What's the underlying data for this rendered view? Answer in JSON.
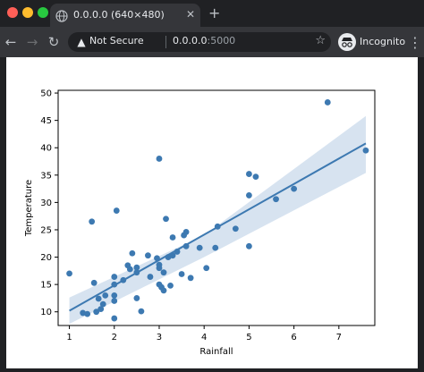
{
  "window": {
    "controls": [
      "close",
      "minimize",
      "maximize"
    ]
  },
  "tab": {
    "title": "0.0.0.0 (640×480)",
    "favicon": "globe-icon"
  },
  "address_bar": {
    "security_label": "Not Secure",
    "host": "0.0.0.0",
    "port": ":5000"
  },
  "profile": {
    "label": "Incognito"
  },
  "colors": {
    "chrome_dark": "#202124",
    "chrome_mid": "#35363a",
    "series": "#3d79b1",
    "band": "#c6d7ea"
  },
  "chart_data": {
    "type": "scatter",
    "xlabel": "Rainfall",
    "ylabel": "Temperature",
    "xlim": [
      0.75,
      7.8
    ],
    "ylim": [
      7.5,
      50.5
    ],
    "xticks": [
      1,
      2,
      3,
      4,
      5,
      6,
      7
    ],
    "yticks": [
      10,
      15,
      20,
      25,
      30,
      35,
      40,
      45,
      50
    ],
    "grid": false,
    "points": [
      [
        1.0,
        17.0
      ],
      [
        1.3,
        9.8
      ],
      [
        1.4,
        9.6
      ],
      [
        1.5,
        26.5
      ],
      [
        1.55,
        15.3
      ],
      [
        1.6,
        10.0
      ],
      [
        1.65,
        12.4
      ],
      [
        1.7,
        10.5
      ],
      [
        1.75,
        11.4
      ],
      [
        1.8,
        13.0
      ],
      [
        2.0,
        8.8
      ],
      [
        2.0,
        12.0
      ],
      [
        2.0,
        13.0
      ],
      [
        2.0,
        15.0
      ],
      [
        2.0,
        16.4
      ],
      [
        2.05,
        28.5
      ],
      [
        2.2,
        15.8
      ],
      [
        2.3,
        18.5
      ],
      [
        2.35,
        17.8
      ],
      [
        2.4,
        20.7
      ],
      [
        2.5,
        12.5
      ],
      [
        2.5,
        17.2
      ],
      [
        2.5,
        18.1
      ],
      [
        2.6,
        10.1
      ],
      [
        2.75,
        20.3
      ],
      [
        2.8,
        16.4
      ],
      [
        2.95,
        19.8
      ],
      [
        3.0,
        18.0
      ],
      [
        3.0,
        18.6
      ],
      [
        3.0,
        15.0
      ],
      [
        3.0,
        38.0
      ],
      [
        3.05,
        14.5
      ],
      [
        3.1,
        17.2
      ],
      [
        3.1,
        13.9
      ],
      [
        3.2,
        20.0
      ],
      [
        3.15,
        27.0
      ],
      [
        3.25,
        14.8
      ],
      [
        3.3,
        20.3
      ],
      [
        3.3,
        23.6
      ],
      [
        3.4,
        21.0
      ],
      [
        3.5,
        16.9
      ],
      [
        3.55,
        24.0
      ],
      [
        3.6,
        22.0
      ],
      [
        3.6,
        24.6
      ],
      [
        3.7,
        16.2
      ],
      [
        3.9,
        21.7
      ],
      [
        4.05,
        18.0
      ],
      [
        4.25,
        21.7
      ],
      [
        4.3,
        25.6
      ],
      [
        4.7,
        25.2
      ],
      [
        5.0,
        22.0
      ],
      [
        5.0,
        31.3
      ],
      [
        5.0,
        35.2
      ],
      [
        5.15,
        34.7
      ],
      [
        5.6,
        30.6
      ],
      [
        6.0,
        32.5
      ],
      [
        6.75,
        48.3
      ],
      [
        7.6,
        39.5
      ]
    ],
    "regression": {
      "x_start": 1.0,
      "x_end": 7.6,
      "y_start": 10.2,
      "y_end": 40.8
    },
    "confidence_band": {
      "upper": [
        [
          1.0,
          12.6
        ],
        [
          4.0,
          24.0
        ],
        [
          7.6,
          45.8
        ]
      ],
      "lower": [
        [
          1.0,
          7.8
        ],
        [
          4.0,
          20.0
        ],
        [
          7.6,
          35.4
        ]
      ]
    }
  }
}
